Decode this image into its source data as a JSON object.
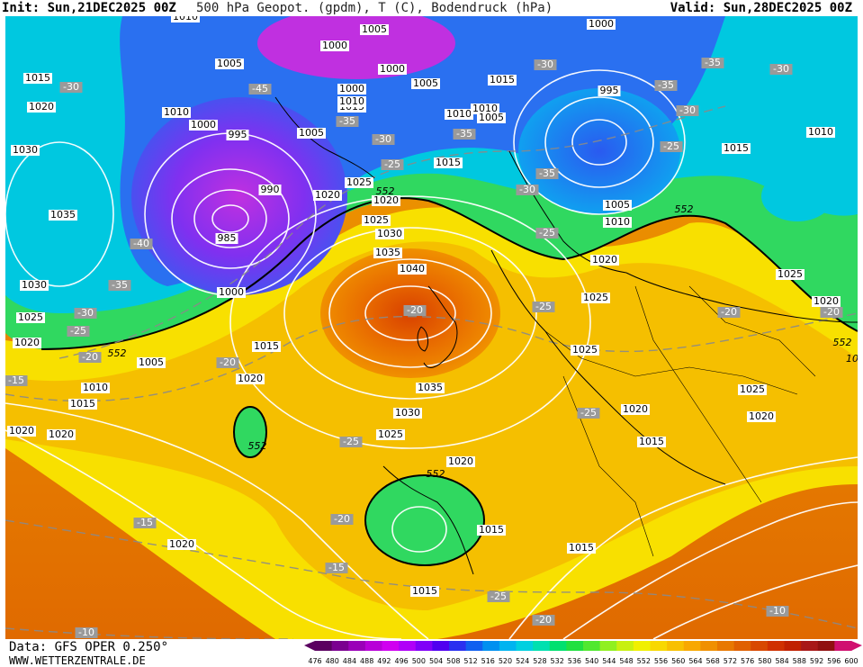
{
  "header": {
    "init": "Init: Sun,21DEC2025 00Z",
    "title": "500 hPa Geopot. (gpdm), T (C), Bodendruck (hPa)",
    "valid": "Valid: Sun,28DEC2025 00Z"
  },
  "footer": {
    "data_source": "Data: GFS OPER 0.250°",
    "website": "WWW.WETTERZENTRALE.DE"
  },
  "colorscale": {
    "ticks": [
      "476",
      "480",
      "484",
      "488",
      "492",
      "496",
      "500",
      "504",
      "508",
      "512",
      "516",
      "520",
      "524",
      "528",
      "532",
      "536",
      "540",
      "544",
      "548",
      "552",
      "556",
      "560",
      "564",
      "568",
      "572",
      "576",
      "580",
      "584",
      "588",
      "592",
      "596",
      "600"
    ],
    "colors": [
      "#5a0060",
      "#7a0090",
      "#9a00b8",
      "#b800d8",
      "#d000f0",
      "#b000f8",
      "#8000f8",
      "#5000f0",
      "#2a30f0",
      "#1060f0",
      "#0090f0",
      "#00b4f0",
      "#00d0e0",
      "#00e0b0",
      "#00e070",
      "#20e040",
      "#50e830",
      "#90f020",
      "#c8f010",
      "#f0f000",
      "#f8d800",
      "#f8c000",
      "#f8a800",
      "#f09000",
      "#e87800",
      "#e06000",
      "#d84800",
      "#d03000",
      "#c02000",
      "#a81818",
      "#901010",
      "#d01070"
    ]
  },
  "map": {
    "pressure_labels": [
      {
        "text": "1010",
        "tx": 200,
        "ty": 4
      },
      {
        "text": "1005",
        "tx": 410,
        "ty": 18
      },
      {
        "text": "1000",
        "tx": 366,
        "ty": 36
      },
      {
        "text": "1000",
        "tx": 430,
        "ty": 62
      },
      {
        "text": "1000",
        "tx": 662,
        "ty": 12
      },
      {
        "text": "1005",
        "tx": 249,
        "ty": 56
      },
      {
        "text": "1015",
        "tx": 36,
        "ty": 72
      },
      {
        "text": "1005",
        "tx": 467,
        "ty": 78
      },
      {
        "text": "1015",
        "tx": 552,
        "ty": 74
      },
      {
        "text": "1000",
        "tx": 385,
        "ty": 84
      },
      {
        "text": "995",
        "tx": 671,
        "ty": 86
      },
      {
        "text": "1020",
        "tx": 40,
        "ty": 104
      },
      {
        "text": "1010",
        "tx": 190,
        "ty": 110
      },
      {
        "text": "1015",
        "tx": 385,
        "ty": 104
      },
      {
        "text": "1010",
        "tx": 385,
        "ty": 98
      },
      {
        "text": "1010",
        "tx": 504,
        "ty": 112
      },
      {
        "text": "1010",
        "tx": 533,
        "ty": 106
      },
      {
        "text": "1005",
        "tx": 540,
        "ty": 116
      },
      {
        "text": "1000",
        "tx": 220,
        "ty": 124
      },
      {
        "text": "995",
        "tx": 258,
        "ty": 135
      },
      {
        "text": "1005",
        "tx": 340,
        "ty": 133
      },
      {
        "text": "1010",
        "tx": 906,
        "ty": 132
      },
      {
        "text": "1030",
        "tx": 22,
        "ty": 152
      },
      {
        "text": "1015",
        "tx": 812,
        "ty": 150
      },
      {
        "text": "1015",
        "tx": 492,
        "ty": 166
      },
      {
        "text": "1025",
        "tx": 393,
        "ty": 188
      },
      {
        "text": "1020",
        "tx": 423,
        "ty": 208
      },
      {
        "text": "1020",
        "tx": 358,
        "ty": 202
      },
      {
        "text": "990",
        "tx": 294,
        "ty": 196
      },
      {
        "text": "1005",
        "tx": 680,
        "ty": 213
      },
      {
        "text": "1035",
        "tx": 64,
        "ty": 224
      },
      {
        "text": "1025",
        "tx": 412,
        "ty": 230
      },
      {
        "text": "1030",
        "tx": 427,
        "ty": 245
      },
      {
        "text": "985",
        "tx": 246,
        "ty": 250
      },
      {
        "text": "1010",
        "tx": 680,
        "ty": 232
      },
      {
        "text": "1035",
        "tx": 425,
        "ty": 266
      },
      {
        "text": "1020",
        "tx": 666,
        "ty": 274
      },
      {
        "text": "1040",
        "tx": 452,
        "ty": 284
      },
      {
        "text": "1030",
        "tx": 32,
        "ty": 302
      },
      {
        "text": "1025",
        "tx": 872,
        "ty": 290
      },
      {
        "text": "1000",
        "tx": 251,
        "ty": 310
      },
      {
        "text": "1025",
        "tx": 656,
        "ty": 316
      },
      {
        "text": "1020",
        "tx": 912,
        "ty": 320
      },
      {
        "text": "1025",
        "tx": 28,
        "ty": 338
      },
      {
        "text": "1020",
        "tx": 24,
        "ty": 366
      },
      {
        "text": "1015",
        "tx": 290,
        "ty": 370
      },
      {
        "text": "1025",
        "tx": 644,
        "ty": 374
      },
      {
        "text": "1005",
        "tx": 162,
        "ty": 388
      },
      {
        "text": "1020",
        "tx": 272,
        "ty": 406
      },
      {
        "text": "1010",
        "tx": 100,
        "ty": 416
      },
      {
        "text": "1035",
        "tx": 472,
        "ty": 416
      },
      {
        "text": "1025",
        "tx": 830,
        "ty": 418
      },
      {
        "text": "1015",
        "tx": 86,
        "ty": 434
      },
      {
        "text": "1020",
        "tx": 700,
        "ty": 440
      },
      {
        "text": "1030",
        "tx": 447,
        "ty": 444
      },
      {
        "text": "1020",
        "tx": 840,
        "ty": 448
      },
      {
        "text": "1020",
        "tx": 18,
        "ty": 464
      },
      {
        "text": "1020",
        "tx": 62,
        "ty": 468
      },
      {
        "text": "1025",
        "tx": 428,
        "ty": 468
      },
      {
        "text": "1015",
        "tx": 718,
        "ty": 476
      },
      {
        "text": "1020",
        "tx": 506,
        "ty": 498
      },
      {
        "text": "1015",
        "tx": 540,
        "ty": 574
      },
      {
        "text": "1020",
        "tx": 196,
        "ty": 590
      },
      {
        "text": "1015",
        "tx": 640,
        "ty": 594
      },
      {
        "text": "1015",
        "tx": 466,
        "ty": 642
      }
    ],
    "temp_labels": [
      {
        "text": "-30",
        "tx": 73,
        "ty": 82
      },
      {
        "text": "-45",
        "tx": 283,
        "ty": 84
      },
      {
        "text": "-35",
        "tx": 380,
        "ty": 120
      },
      {
        "text": "-30",
        "tx": 420,
        "ty": 140
      },
      {
        "text": "-25",
        "tx": 430,
        "ty": 168
      },
      {
        "text": "-35",
        "tx": 510,
        "ty": 134
      },
      {
        "text": "-30",
        "tx": 600,
        "ty": 57
      },
      {
        "text": "-35",
        "tx": 786,
        "ty": 55
      },
      {
        "text": "-30",
        "tx": 862,
        "ty": 62
      },
      {
        "text": "-35",
        "tx": 734,
        "ty": 80
      },
      {
        "text": "-30",
        "tx": 758,
        "ty": 108
      },
      {
        "text": "-25",
        "tx": 740,
        "ty": 148
      },
      {
        "text": "-35",
        "tx": 602,
        "ty": 178
      },
      {
        "text": "-30",
        "tx": 580,
        "ty": 196
      },
      {
        "text": "-25",
        "tx": 602,
        "ty": 244
      },
      {
        "text": "-40",
        "tx": 151,
        "ty": 256
      },
      {
        "text": "-35",
        "tx": 127,
        "ty": 302
      },
      {
        "text": "-30",
        "tx": 89,
        "ty": 333
      },
      {
        "text": "-25",
        "tx": 81,
        "ty": 353
      },
      {
        "text": "-20",
        "tx": 455,
        "ty": 330
      },
      {
        "text": "-25",
        "tx": 598,
        "ty": 326
      },
      {
        "text": "-20",
        "tx": 804,
        "ty": 332
      },
      {
        "text": "-20",
        "tx": 918,
        "ty": 332
      },
      {
        "text": "-20",
        "tx": 94,
        "ty": 382
      },
      {
        "text": "-20",
        "tx": 247,
        "ty": 388
      },
      {
        "text": "-15",
        "tx": 12,
        "ty": 408
      },
      {
        "text": "-25",
        "tx": 648,
        "ty": 444
      },
      {
        "text": "-25",
        "tx": 384,
        "ty": 476
      },
      {
        "text": "-20",
        "tx": 374,
        "ty": 562
      },
      {
        "text": "-15",
        "tx": 155,
        "ty": 566
      },
      {
        "text": "-15",
        "tx": 368,
        "ty": 616
      },
      {
        "text": "-25",
        "tx": 548,
        "ty": 648
      },
      {
        "text": "-20",
        "tx": 598,
        "ty": 674
      },
      {
        "text": "-10",
        "tx": 858,
        "ty": 664
      },
      {
        "text": "-10",
        "tx": 90,
        "ty": 688
      }
    ],
    "geopot_labels": [
      {
        "text": "552",
        "tx": 422,
        "ty": 198
      },
      {
        "text": "552",
        "tx": 754,
        "ty": 218
      },
      {
        "text": "552",
        "tx": 124,
        "ty": 378
      },
      {
        "text": "552",
        "tx": 280,
        "ty": 481
      },
      {
        "text": "552",
        "tx": 478,
        "ty": 512
      },
      {
        "text": "552",
        "tx": 930,
        "ty": 366
      }
    ],
    "right_edge_label": "10"
  }
}
